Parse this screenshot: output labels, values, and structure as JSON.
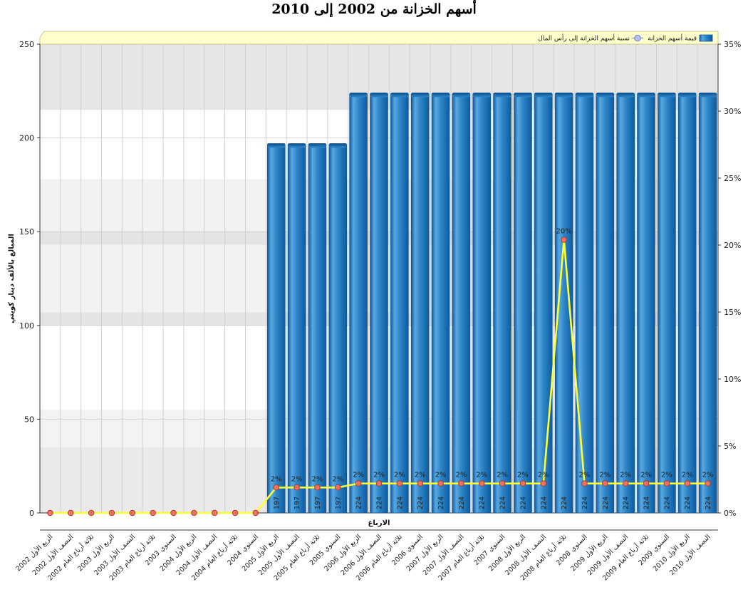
{
  "chart_data": {
    "type": "bar",
    "title": "أسهم الخزانة من 2002 إلى 2010",
    "xlabel": "الارباع",
    "ylabel": "المبالغ بالألف دينار كويتي",
    "y_range": [
      0,
      250
    ],
    "y_ticks": [
      "0",
      "50",
      "100",
      "150",
      "200",
      "250"
    ],
    "y2_range": [
      0,
      35
    ],
    "y2_ticks": [
      "0%",
      "5%",
      "10%",
      "15%",
      "20%",
      "25%",
      "30%",
      "35%"
    ],
    "legend_position": "top-right",
    "colors": {
      "bar": "#2f87c8",
      "bar_dark": "#0d5aa0",
      "line": "#ffff33",
      "marker": "#f07060"
    },
    "categories": [
      "الربع الأول 2002",
      "النصف الأول 2002",
      "ثلاثة أرباع العام 2002",
      "الربع الأول 2003",
      "النصف الأول 2003",
      "ثلاثة أرباع العام 2003",
      "السنوي 2003",
      "الربع الأول 2004",
      "النصف الأول 2004",
      "ثلاثة أرباع العام 2004",
      "السنوي 2004",
      "الربع الأول 2005",
      "النصف الأول 2005",
      "ثلاثة أرباع العام 2005",
      "السنوي 2005",
      "الربع الأول 2006",
      "النصف الأول 2006",
      "ثلاثة أرباع العام 2006",
      "السنوي 2006",
      "الربع الأول 2007",
      "النصف الأول 2007",
      "ثلاثة أرباع العام 2007",
      "السنوي 2007",
      "الربع الأول 2008",
      "النصف الأول 2008",
      "ثلاثة أرباع العام 2008",
      "السنوي 2008",
      "الربع الأول 2009",
      "النصف الأول 2009",
      "ثلاثة أرباع العام 2009",
      "السنوي 2009",
      "الربع الأول 2010",
      "النصف الأول 2010"
    ],
    "series": [
      {
        "name": "قيمة أسهم الخزانة",
        "type": "bar",
        "values": [
          0,
          0,
          0,
          0,
          0,
          0,
          0,
          0,
          0,
          0,
          0,
          197,
          197,
          197,
          197,
          224,
          224,
          224,
          224,
          224,
          224,
          224,
          224,
          224,
          224,
          224,
          224,
          224,
          224,
          224,
          224,
          224,
          224
        ],
        "labels": [
          "",
          "",
          "",
          "",
          "",
          "",
          "",
          "",
          "",
          "",
          "",
          "197",
          "197",
          "197",
          "197",
          "224",
          "224",
          "224",
          "224",
          "224",
          "224",
          "224",
          "224",
          "224",
          "224",
          "224",
          "224",
          "224",
          "224",
          "224",
          "224",
          "224",
          "224"
        ]
      },
      {
        "name": "نسبة أسهم الخزانة إلى رأس المال",
        "type": "line",
        "axis": "secondary",
        "values": [
          0,
          0,
          0,
          0,
          0,
          0,
          0,
          0,
          0,
          0,
          0,
          1.9,
          1.9,
          1.9,
          1.9,
          2.2,
          2.2,
          2.2,
          2.2,
          2.2,
          2.2,
          2.2,
          2.2,
          2.2,
          2.2,
          20.4,
          2.2,
          2.2,
          2.2,
          2.2,
          2.2,
          2.2,
          2.2
        ],
        "labels": [
          "",
          "",
          "",
          "",
          "",
          "",
          "",
          "",
          "",
          "",
          "",
          "2%",
          "2%",
          "2%",
          "2%",
          "2%",
          "2%",
          "2%",
          "2%",
          "2%",
          "2%",
          "2%",
          "2%",
          "2%",
          "2%",
          "20%",
          "2%",
          "2%",
          "2%",
          "2%",
          "2%",
          "2%",
          "2%"
        ]
      }
    ]
  }
}
